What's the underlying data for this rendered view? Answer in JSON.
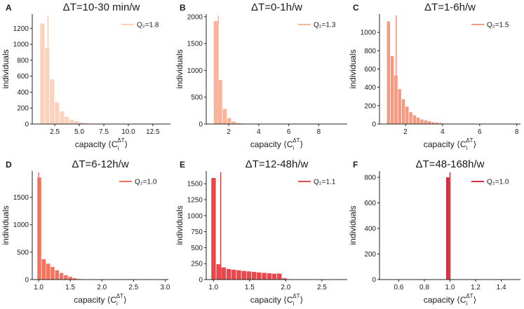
{
  "figure": {
    "ylabel": "individuals",
    "xlabel_prefix": "capacity",
    "xlabel_symbol": "C",
    "xlabel_sub": "i",
    "xlabel_sup": "ΔT"
  },
  "chart_data": [
    {
      "type": "bar",
      "panel": "A",
      "title": "ΔT=10-30 min/w",
      "color": "#fcd2bd",
      "xlim": [
        0.2,
        14.3
      ],
      "ylim": [
        0,
        1380
      ],
      "xticks": [
        2.5,
        5.0,
        7.5,
        10.0,
        12.5
      ],
      "xtick_labels": [
        "2.5",
        "5.0",
        "7.5",
        "10.0",
        "12.5"
      ],
      "yticks": [
        0,
        200,
        400,
        600,
        800,
        1000,
        1200
      ],
      "ytick_labels": [
        "0",
        "200",
        "400",
        "600",
        "800",
        "1000",
        "1200"
      ],
      "bin_start": 1.0,
      "bin_width": 0.5,
      "values": [
        1260,
        950,
        560,
        270,
        160,
        90,
        55,
        35,
        20,
        10
      ],
      "q2": 1.8,
      "legend": "Q₂=1.8"
    },
    {
      "type": "bar",
      "panel": "B",
      "title": "ΔT=0-1h/w",
      "color": "#fbb49b",
      "xlim": [
        0.5,
        9.9
      ],
      "ylim": [
        0,
        2050
      ],
      "xticks": [
        2,
        4,
        6,
        8
      ],
      "xtick_labels": [
        "2",
        "4",
        "6",
        "8"
      ],
      "yticks": [
        0,
        500,
        1000,
        1500,
        2000
      ],
      "ytick_labels": [
        "0",
        "500",
        "1000",
        "1500",
        "2000"
      ],
      "bin_start": 1.0,
      "bin_width": 0.3,
      "values": [
        1920,
        820,
        280,
        110,
        50,
        20,
        10
      ],
      "q2": 1.3,
      "legend": "Q₂=1.3"
    },
    {
      "type": "bar",
      "panel": "C",
      "title": "ΔT=1-6h/w",
      "color": "#f79880",
      "xlim": [
        0.6,
        8.2
      ],
      "ylim": [
        0,
        1200
      ],
      "xticks": [
        2,
        4,
        6,
        8
      ],
      "xtick_labels": [
        "2",
        "4",
        "6",
        "8"
      ],
      "yticks": [
        0,
        200,
        400,
        600,
        800,
        1000
      ],
      "ytick_labels": [
        "0",
        "200",
        "400",
        "600",
        "800",
        "1000"
      ],
      "bin_start": 1.0,
      "bin_width": 0.2,
      "values": [
        1120,
        740,
        530,
        380,
        270,
        190,
        130,
        95,
        70,
        50,
        40,
        30,
        20,
        15,
        10,
        5
      ],
      "q2": 1.5,
      "legend": "Q₂=1.5"
    },
    {
      "type": "bar",
      "panel": "D",
      "title": "ΔT=6-12h/w",
      "color": "#f4735f",
      "xlim": [
        0.9,
        3.05
      ],
      "ylim": [
        0,
        1980
      ],
      "xticks": [
        1.0,
        1.5,
        2.0,
        2.5,
        3.0
      ],
      "xtick_labels": [
        "1.0",
        "1.5",
        "2.0",
        "2.5",
        "3.0"
      ],
      "yticks": [
        0,
        500,
        1000,
        1500
      ],
      "ytick_labels": [
        "0",
        "500",
        "1000",
        "1500"
      ],
      "bin_start": 0.98,
      "bin_width": 0.07,
      "values": [
        1860,
        370,
        290,
        230,
        170,
        120,
        80,
        50,
        25,
        10
      ],
      "q2": 1.0,
      "legend": "Q₂=1.0"
    },
    {
      "type": "bar",
      "panel": "E",
      "title": "ΔT=12-48h/w",
      "color": "#e9474b",
      "xlim": [
        0.9,
        2.85
      ],
      "ylim": [
        0,
        1700
      ],
      "xticks": [
        1.0,
        1.5,
        2.0,
        2.5
      ],
      "xtick_labels": [
        "1.0",
        "1.5",
        "2.0",
        "2.5"
      ],
      "yticks": [
        0,
        250,
        500,
        750,
        1000,
        1250,
        1500
      ],
      "ytick_labels": [
        "0",
        "250",
        "500",
        "750",
        "1000",
        "1250",
        "1500"
      ],
      "bin_start": 0.97,
      "bin_width": 0.07,
      "values": [
        1590,
        240,
        190,
        165,
        155,
        145,
        135,
        128,
        120,
        112,
        105,
        98,
        92,
        95,
        20
      ],
      "q2": 1.1,
      "legend": "Q₂=1.1"
    },
    {
      "type": "bar",
      "panel": "F",
      "title": "ΔT=48-168h/w",
      "color": "#d42f3d",
      "xlim": [
        0.45,
        1.55
      ],
      "ylim": [
        0,
        850
      ],
      "xticks": [
        0.6,
        0.8,
        1.0,
        1.2,
        1.4
      ],
      "xtick_labels": [
        "0.6",
        "0.8",
        "1.0",
        "1.2",
        "1.4"
      ],
      "yticks": [
        0,
        200,
        400,
        600,
        800
      ],
      "ytick_labels": [
        "0",
        "200",
        "400",
        "600",
        "800"
      ],
      "bin_start": 0.97,
      "bin_width": 0.03,
      "values": [
        800
      ],
      "q2": 1.0,
      "legend": "Q₂=1.0"
    }
  ]
}
